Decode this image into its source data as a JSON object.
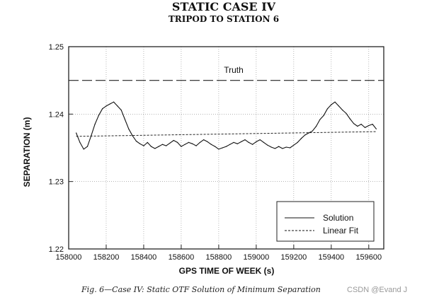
{
  "chart_data": {
    "type": "line",
    "title": "STATIC CASE IV",
    "subtitle": "TRIPOD TO STATION 6",
    "xlabel": "GPS TIME OF WEEK (s)",
    "ylabel": "SEPARATION (m)",
    "xlim": [
      158000,
      159680
    ],
    "ylim": [
      1.22,
      1.25
    ],
    "xticks": [
      158000,
      158200,
      158400,
      158600,
      158800,
      159000,
      159200,
      159400,
      159600
    ],
    "xtick_labels": [
      "158000",
      "158200",
      "158400",
      "158600",
      "158800",
      "159000",
      "159200",
      "159400",
      "159600"
    ],
    "yticks": [
      1.22,
      1.23,
      1.24,
      1.25
    ],
    "ytick_labels": [
      "1.22",
      "1.23",
      "1.24",
      "1.25"
    ],
    "grid": true,
    "legend_position": "bottom-right",
    "truth": {
      "label": "Truth",
      "value": 1.245
    },
    "series": [
      {
        "name": "Solution",
        "style": "solid",
        "x": [
          158040,
          158060,
          158080,
          158100,
          158120,
          158140,
          158160,
          158180,
          158200,
          158220,
          158240,
          158260,
          158280,
          158300,
          158320,
          158340,
          158360,
          158380,
          158400,
          158420,
          158440,
          158460,
          158480,
          158500,
          158520,
          158540,
          158560,
          158580,
          158600,
          158620,
          158640,
          158660,
          158680,
          158700,
          158720,
          158740,
          158760,
          158780,
          158800,
          158820,
          158840,
          158860,
          158880,
          158900,
          158920,
          158940,
          158960,
          158980,
          159000,
          159020,
          159040,
          159060,
          159080,
          159100,
          159120,
          159140,
          159160,
          159180,
          159200,
          159220,
          159240,
          159260,
          159280,
          159300,
          159320,
          159340,
          159360,
          159380,
          159400,
          159420,
          159440,
          159460,
          159480,
          159500,
          159520,
          159540,
          159560,
          159580,
          159600,
          159620,
          159640
        ],
        "y": [
          1.2372,
          1.2358,
          1.2348,
          1.2352,
          1.2368,
          1.2385,
          1.2398,
          1.2408,
          1.2412,
          1.2415,
          1.2418,
          1.2412,
          1.2406,
          1.2392,
          1.2378,
          1.2368,
          1.236,
          1.2356,
          1.2353,
          1.2358,
          1.2352,
          1.2349,
          1.2352,
          1.2355,
          1.2353,
          1.2357,
          1.2361,
          1.2358,
          1.2352,
          1.2355,
          1.2358,
          1.2356,
          1.2353,
          1.2358,
          1.2362,
          1.2359,
          1.2355,
          1.2352,
          1.2348,
          1.235,
          1.2352,
          1.2355,
          1.2358,
          1.2356,
          1.2359,
          1.2362,
          1.2358,
          1.2355,
          1.2359,
          1.2362,
          1.2358,
          1.2354,
          1.2351,
          1.2349,
          1.2352,
          1.2349,
          1.2351,
          1.235,
          1.2354,
          1.2358,
          1.2364,
          1.2369,
          1.2372,
          1.2375,
          1.2382,
          1.2392,
          1.2398,
          1.2408,
          1.2414,
          1.2418,
          1.2412,
          1.2406,
          1.2401,
          1.2393,
          1.2386,
          1.2382,
          1.2385,
          1.238,
          1.2383,
          1.2385,
          1.2378
        ]
      },
      {
        "name": "Linear Fit",
        "style": "dashed",
        "x": [
          158040,
          159640
        ],
        "y": [
          1.2367,
          1.2374
        ]
      }
    ]
  },
  "caption": "Fig. 6—Case IV: Static OTF Solution of Minimum Separation",
  "watermark": "CSDN @Evand J"
}
